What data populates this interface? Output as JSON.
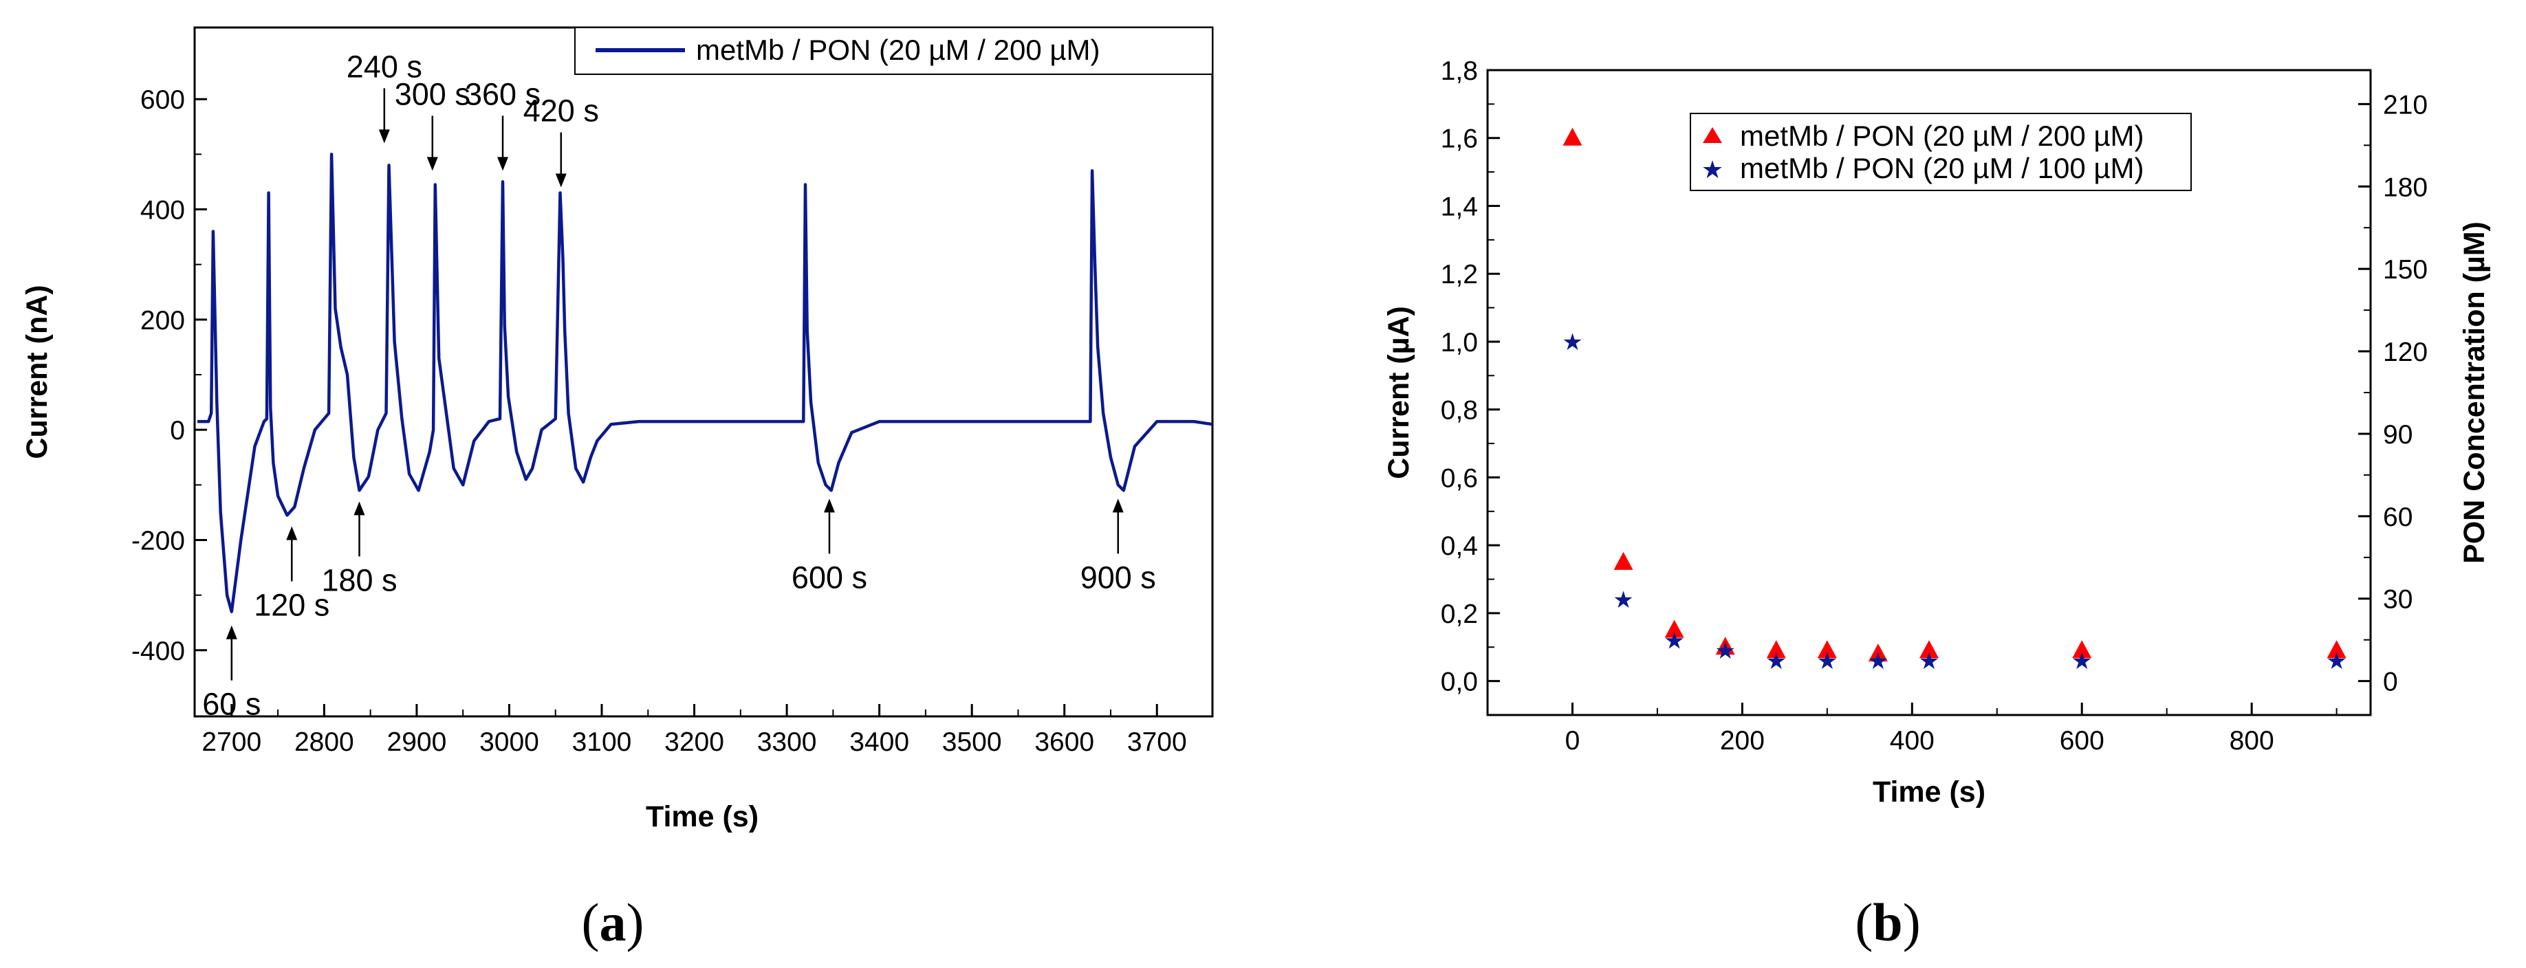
{
  "colors": {
    "series_a": "#0b1a8f",
    "triangle": "#ff0000",
    "star": "#0b1a8f",
    "axis": "#000000"
  },
  "panel_labels": {
    "a_open": "(",
    "a": "a",
    "a_close": ")",
    "b_open": "(",
    "b": "b",
    "b_close": ")"
  },
  "chart_data": [
    {
      "panel": "a",
      "type": "line",
      "title": "",
      "xlabel": "Time (s)",
      "ylabel": "Current (nA)",
      "xlim": [
        2660,
        3760
      ],
      "ylim": [
        -520,
        730
      ],
      "xticks": [
        2700,
        2800,
        2900,
        3000,
        3100,
        3200,
        3300,
        3400,
        3500,
        3600,
        3700
      ],
      "xtick_labels": [
        "2700",
        "2800",
        "2900",
        "3000",
        "3100",
        "3200",
        "3300",
        "3400",
        "3500",
        "3600",
        "3700"
      ],
      "yticks": [
        -400,
        -200,
        0,
        200,
        400,
        600
      ],
      "ytick_labels": [
        "-400",
        "-200",
        "0",
        "200",
        "400",
        "600"
      ],
      "legend": {
        "position": "top-right",
        "entries": [
          "metMb / PON (20 µM / 200 µM)"
        ]
      },
      "series": [
        {
          "name": "metMb / PON (20 µM / 200 µM)",
          "x": [
            2663,
            2675,
            2678,
            2680,
            2684,
            2688,
            2695,
            2700,
            2710,
            2725,
            2735,
            2738,
            2740,
            2742,
            2745,
            2750,
            2760,
            2768,
            2778,
            2790,
            2800,
            2805,
            2808,
            2812,
            2818,
            2825,
            2832,
            2838,
            2848,
            2858,
            2864,
            2867,
            2870,
            2876,
            2884,
            2892,
            2902,
            2914,
            2918,
            2920,
            2924,
            2932,
            2940,
            2950,
            2962,
            2978,
            2990,
            2993,
            2995,
            2999,
            3008,
            3018,
            3025,
            3035,
            3050,
            3055,
            3058,
            3060,
            3064,
            3072,
            3080,
            3088,
            3095,
            3110,
            3140,
            3200,
            3260,
            3318,
            3320,
            3322,
            3326,
            3334,
            3342,
            3348,
            3356,
            3370,
            3400,
            3500,
            3600,
            3628,
            3630,
            3633,
            3636,
            3642,
            3650,
            3658,
            3664,
            3676,
            3700,
            3740,
            3760
          ],
          "y": [
            15,
            15,
            30,
            360,
            50,
            -150,
            -300,
            -330,
            -200,
            -30,
            15,
            20,
            430,
            40,
            -60,
            -120,
            -155,
            -140,
            -70,
            0,
            20,
            30,
            500,
            220,
            150,
            100,
            -50,
            -110,
            -85,
            0,
            20,
            30,
            480,
            160,
            20,
            -80,
            -110,
            -40,
            0,
            445,
            130,
            30,
            -70,
            -100,
            -20,
            15,
            20,
            450,
            190,
            60,
            -40,
            -90,
            -70,
            0,
            20,
            430,
            310,
            180,
            30,
            -70,
            -95,
            -50,
            -20,
            10,
            15,
            15,
            15,
            15,
            445,
            180,
            50,
            -60,
            -100,
            -110,
            -60,
            -5,
            15,
            15,
            15,
            15,
            470,
            300,
            150,
            30,
            -50,
            -100,
            -110,
            -30,
            15,
            15,
            10
          ]
        }
      ],
      "annotations": [
        {
          "text": "60 s",
          "x": 2700,
          "y": -355,
          "text_side": "below"
        },
        {
          "text": "120 s",
          "x": 2765,
          "y": -175,
          "text_side": "below"
        },
        {
          "text": "180 s",
          "x": 2838,
          "y": -130,
          "text_side": "below"
        },
        {
          "text": "240 s",
          "x": 2865,
          "y": 520,
          "text_side": "above"
        },
        {
          "text": "300 s",
          "x": 2917,
          "y": 470,
          "text_side": "above"
        },
        {
          "text": "360 s",
          "x": 2993,
          "y": 470,
          "text_side": "above"
        },
        {
          "text": "420 s",
          "x": 3056,
          "y": 440,
          "text_side": "above"
        },
        {
          "text": "600 s",
          "x": 3346,
          "y": -125,
          "text_side": "below"
        },
        {
          "text": "900 s",
          "x": 3658,
          "y": -125,
          "text_side": "below"
        }
      ]
    },
    {
      "panel": "b",
      "type": "scatter",
      "title": "",
      "xlabel": "Time (s)",
      "ylabel": "Current (µA)",
      "ylabel_right": "PON Concentration (µM)",
      "xlim": [
        -100,
        940
      ],
      "ylim": [
        -0.1,
        1.8
      ],
      "xticks": [
        0,
        200,
        400,
        600,
        800
      ],
      "xtick_labels": [
        "0",
        "200",
        "400",
        "600",
        "800"
      ],
      "yticks": [
        0.0,
        0.2,
        0.4,
        0.6,
        0.8,
        1.0,
        1.2,
        1.4,
        1.6,
        1.8
      ],
      "ytick_labels": [
        "0,0",
        "0,2",
        "0,4",
        "0,6",
        "0,8",
        "1,0",
        "1,2",
        "1,4",
        "1,6",
        "1,8"
      ],
      "y2lim": [
        -12.35,
        222.35
      ],
      "y2ticks": [
        0,
        30,
        60,
        90,
        120,
        150,
        180,
        210
      ],
      "y2tick_labels": [
        "0",
        "30",
        "60",
        "90",
        "120",
        "150",
        "180",
        "210"
      ],
      "legend": {
        "position": "top-center",
        "entries": [
          "metMb / PON (20 µM / 200 µM)",
          "metMb / PON (20 µM / 100 µM)"
        ]
      },
      "series": [
        {
          "name": "metMb / PON (20 µM / 200 µM)",
          "marker": "triangle",
          "x": [
            0,
            60,
            120,
            180,
            240,
            300,
            360,
            420,
            600,
            900
          ],
          "y": [
            1.6,
            0.35,
            0.15,
            0.1,
            0.09,
            0.09,
            0.08,
            0.09,
            0.09,
            0.09
          ]
        },
        {
          "name": "metMb / PON (20 µM / 100 µM)",
          "marker": "star",
          "x": [
            0,
            60,
            120,
            180,
            240,
            300,
            360,
            420,
            600,
            900
          ],
          "y": [
            1.0,
            0.24,
            0.12,
            0.09,
            0.06,
            0.06,
            0.06,
            0.06,
            0.06,
            0.06
          ]
        }
      ]
    }
  ]
}
